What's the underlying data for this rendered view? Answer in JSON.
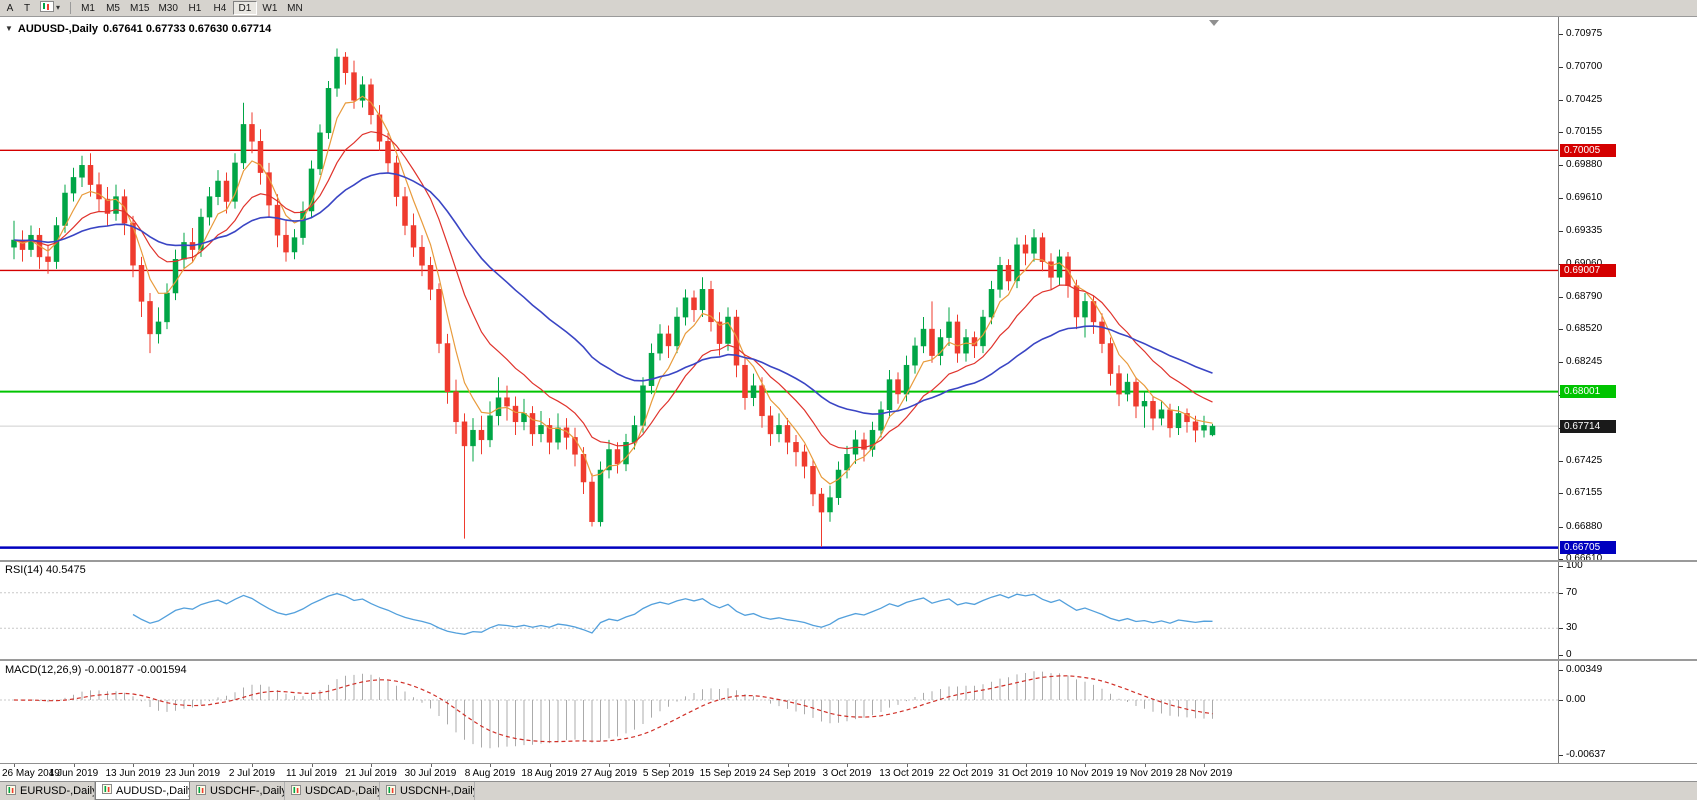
{
  "toolbar": {
    "left_buttons": [
      "A",
      "T"
    ],
    "timeframes": [
      "M1",
      "M5",
      "M15",
      "M30",
      "H1",
      "H4",
      "D1",
      "W1",
      "MN"
    ],
    "active_timeframe": "D1"
  },
  "icons": {
    "collapse": "▼",
    "dropdown": "▾"
  },
  "chart": {
    "title": "AUDUSD-,Daily",
    "ohlc_label": "0.67641 0.67733 0.67630 0.67714"
  },
  "chart_data": {
    "type": "candlestick",
    "symbol": "AUDUSD",
    "timeframe": "Daily",
    "current": {
      "open": 0.67641,
      "high": 0.67733,
      "low": 0.6763,
      "close": 0.67714
    },
    "bull_color": "#00a546",
    "bear_color": "#ef3b2e",
    "price_range": {
      "top": 0.71055,
      "bottom": 0.6661
    },
    "y_ticks": [
      "0.70975",
      "0.70700",
      "0.70425",
      "0.70155",
      "0.69880",
      "0.69610",
      "0.69335",
      "0.69060",
      "0.68790",
      "0.68520",
      "0.68245",
      "0.67975",
      "0.67700",
      "0.67425",
      "0.67155",
      "0.66880",
      "0.66610"
    ],
    "x_labels": [
      "26 May 2019",
      "4 Jun 2019",
      "13 Jun 2019",
      "23 Jun 2019",
      "2 Jul 2019",
      "11 Jul 2019",
      "21 Jul 2019",
      "30 Jul 2019",
      "8 Aug 2019",
      "18 Aug 2019",
      "27 Aug 2019",
      "5 Sep 2019",
      "15 Sep 2019",
      "24 Sep 2019",
      "3 Oct 2019",
      "13 Oct 2019",
      "22 Oct 2019",
      "31 Oct 2019",
      "10 Nov 2019",
      "19 Nov 2019",
      "28 Nov 2019"
    ],
    "x_label_interval": 7,
    "levels": [
      {
        "price": 0.70005,
        "label": "0.70005",
        "color": "#d40000",
        "width": 1.4,
        "type": "resistance"
      },
      {
        "price": 0.69007,
        "label": "0.69007",
        "color": "#d40000",
        "width": 1.4,
        "type": "resistance"
      },
      {
        "price": 0.68001,
        "label": "0.68001",
        "color": "#00c400",
        "width": 2,
        "type": "support"
      },
      {
        "price": 0.66705,
        "label": "0.66705",
        "color": "#0000bf",
        "width": 2.5,
        "type": "support"
      }
    ],
    "current_price": {
      "value": 0.67714,
      "label": "0.67714",
      "badge_color": "#1a1a1a",
      "line_color": "#cfcfcf"
    },
    "moving_averages": [
      {
        "period": 5,
        "method": "ema",
        "color": "#e89b3c"
      },
      {
        "period": 13,
        "method": "ema",
        "color": "#e0332c"
      },
      {
        "period": 34,
        "method": "ema",
        "color": "#3a45c4"
      }
    ],
    "indicators": [
      {
        "name": "RSI",
        "label": "RSI(14) 40.5475",
        "period": 14,
        "value": 40.5475,
        "levels": [
          70,
          30
        ],
        "y_ticks": [
          100,
          70,
          30,
          0
        ],
        "range": [
          0,
          100
        ],
        "color": "#53a0dc"
      },
      {
        "name": "MACD",
        "label": "MACD(12,26,9) -0.001877 -0.001594",
        "fast": 12,
        "slow": 26,
        "signal_period": 9,
        "values": [
          -0.001877,
          -0.001594
        ],
        "y_ticks": [
          "0.00349",
          "0.00",
          "-0.00637"
        ],
        "y_tick_values": [
          0.00349,
          0,
          -0.00637
        ],
        "range": [
          -0.00637,
          0.00349
        ],
        "histogram_color": "#ababab",
        "signal_color": "#d03028"
      }
    ],
    "candles": [
      [
        0.692,
        0.6942,
        0.691,
        0.6926
      ],
      [
        0.6926,
        0.6934,
        0.6908,
        0.6918
      ],
      [
        0.6918,
        0.6938,
        0.6912,
        0.693
      ],
      [
        0.693,
        0.6936,
        0.6902,
        0.6912
      ],
      [
        0.6912,
        0.6922,
        0.6898,
        0.6908
      ],
      [
        0.6908,
        0.6945,
        0.6902,
        0.6938
      ],
      [
        0.6938,
        0.6972,
        0.6932,
        0.6965
      ],
      [
        0.6965,
        0.6986,
        0.6958,
        0.6978
      ],
      [
        0.6978,
        0.6996,
        0.697,
        0.6988
      ],
      [
        0.6988,
        0.6998,
        0.6962,
        0.6972
      ],
      [
        0.6972,
        0.6982,
        0.695,
        0.696
      ],
      [
        0.696,
        0.697,
        0.6938,
        0.6948
      ],
      [
        0.6948,
        0.6972,
        0.6942,
        0.6962
      ],
      [
        0.6962,
        0.6968,
        0.693,
        0.694
      ],
      [
        0.694,
        0.6946,
        0.6895,
        0.6905
      ],
      [
        0.6905,
        0.6912,
        0.6862,
        0.6875
      ],
      [
        0.6875,
        0.6882,
        0.6832,
        0.6848
      ],
      [
        0.6848,
        0.687,
        0.684,
        0.6858
      ],
      [
        0.6858,
        0.689,
        0.6852,
        0.6882
      ],
      [
        0.6882,
        0.6918,
        0.6876,
        0.691
      ],
      [
        0.691,
        0.6932,
        0.6902,
        0.6924
      ],
      [
        0.6924,
        0.6936,
        0.6908,
        0.6918
      ],
      [
        0.6918,
        0.6952,
        0.6912,
        0.6945
      ],
      [
        0.6945,
        0.697,
        0.6938,
        0.6962
      ],
      [
        0.6962,
        0.6984,
        0.6955,
        0.6975
      ],
      [
        0.6975,
        0.6982,
        0.6948,
        0.6958
      ],
      [
        0.6958,
        0.6998,
        0.6952,
        0.699
      ],
      [
        0.699,
        0.704,
        0.6985,
        0.7022
      ],
      [
        0.7022,
        0.7032,
        0.6998,
        0.7008
      ],
      [
        0.7008,
        0.7018,
        0.6972,
        0.6982
      ],
      [
        0.6982,
        0.699,
        0.6945,
        0.6955
      ],
      [
        0.6955,
        0.6964,
        0.692,
        0.693
      ],
      [
        0.693,
        0.6942,
        0.6908,
        0.6916
      ],
      [
        0.6916,
        0.6935,
        0.691,
        0.6928
      ],
      [
        0.6928,
        0.6958,
        0.6922,
        0.695
      ],
      [
        0.695,
        0.6992,
        0.6944,
        0.6985
      ],
      [
        0.6985,
        0.7022,
        0.698,
        0.7015
      ],
      [
        0.7015,
        0.7058,
        0.701,
        0.7052
      ],
      [
        0.7052,
        0.7085,
        0.7045,
        0.7078
      ],
      [
        0.7078,
        0.7082,
        0.7055,
        0.7065
      ],
      [
        0.7065,
        0.7075,
        0.7035,
        0.7042
      ],
      [
        0.7042,
        0.7062,
        0.7036,
        0.7055
      ],
      [
        0.7055,
        0.706,
        0.7022,
        0.703
      ],
      [
        0.703,
        0.7038,
        0.7,
        0.7008
      ],
      [
        0.7008,
        0.7015,
        0.6982,
        0.699
      ],
      [
        0.699,
        0.6996,
        0.6954,
        0.6962
      ],
      [
        0.6962,
        0.697,
        0.693,
        0.6938
      ],
      [
        0.6938,
        0.6948,
        0.6912,
        0.692
      ],
      [
        0.692,
        0.693,
        0.6896,
        0.6905
      ],
      [
        0.6905,
        0.6912,
        0.6876,
        0.6885
      ],
      [
        0.6885,
        0.689,
        0.6832,
        0.684
      ],
      [
        0.684,
        0.6848,
        0.679,
        0.68
      ],
      [
        0.68,
        0.681,
        0.6765,
        0.6775
      ],
      [
        0.6775,
        0.6782,
        0.6678,
        0.6755
      ],
      [
        0.6755,
        0.6778,
        0.6742,
        0.6768
      ],
      [
        0.6768,
        0.678,
        0.6748,
        0.676
      ],
      [
        0.676,
        0.6792,
        0.6754,
        0.678
      ],
      [
        0.678,
        0.6812,
        0.6772,
        0.6795
      ],
      [
        0.6795,
        0.6805,
        0.6776,
        0.6788
      ],
      [
        0.6788,
        0.6796,
        0.6764,
        0.6775
      ],
      [
        0.6775,
        0.6794,
        0.6768,
        0.6782
      ],
      [
        0.6782,
        0.6788,
        0.6755,
        0.6765
      ],
      [
        0.6765,
        0.6784,
        0.6758,
        0.6772
      ],
      [
        0.6772,
        0.6778,
        0.6748,
        0.6758
      ],
      [
        0.6758,
        0.6782,
        0.6752,
        0.677
      ],
      [
        0.677,
        0.6778,
        0.6752,
        0.6762
      ],
      [
        0.6762,
        0.677,
        0.6738,
        0.6748
      ],
      [
        0.6748,
        0.6754,
        0.6715,
        0.6725
      ],
      [
        0.6725,
        0.6732,
        0.6688,
        0.6692
      ],
      [
        0.6692,
        0.6742,
        0.6688,
        0.6735
      ],
      [
        0.6735,
        0.676,
        0.6728,
        0.6752
      ],
      [
        0.6752,
        0.6758,
        0.6732,
        0.674
      ],
      [
        0.674,
        0.6765,
        0.6734,
        0.6758
      ],
      [
        0.6758,
        0.678,
        0.6752,
        0.6772
      ],
      [
        0.6772,
        0.6812,
        0.6766,
        0.6805
      ],
      [
        0.6805,
        0.684,
        0.6798,
        0.6832
      ],
      [
        0.6832,
        0.6856,
        0.6826,
        0.6848
      ],
      [
        0.6848,
        0.6855,
        0.6828,
        0.6838
      ],
      [
        0.6838,
        0.687,
        0.6832,
        0.6862
      ],
      [
        0.6862,
        0.6885,
        0.6855,
        0.6878
      ],
      [
        0.6878,
        0.6884,
        0.6858,
        0.6868
      ],
      [
        0.6868,
        0.6895,
        0.6862,
        0.6885
      ],
      [
        0.6885,
        0.6892,
        0.685,
        0.6858
      ],
      [
        0.6858,
        0.6866,
        0.683,
        0.684
      ],
      [
        0.684,
        0.687,
        0.6834,
        0.6862
      ],
      [
        0.6862,
        0.6868,
        0.6812,
        0.6822
      ],
      [
        0.6822,
        0.683,
        0.6785,
        0.6795
      ],
      [
        0.6795,
        0.6815,
        0.6788,
        0.6805
      ],
      [
        0.6805,
        0.6812,
        0.677,
        0.678
      ],
      [
        0.678,
        0.6788,
        0.6755,
        0.6765
      ],
      [
        0.6765,
        0.6782,
        0.6758,
        0.6772
      ],
      [
        0.6772,
        0.6778,
        0.6748,
        0.6758
      ],
      [
        0.6758,
        0.6764,
        0.6738,
        0.675
      ],
      [
        0.675,
        0.6756,
        0.6728,
        0.6738
      ],
      [
        0.6738,
        0.6744,
        0.6705,
        0.6715
      ],
      [
        0.6715,
        0.672,
        0.6671,
        0.67
      ],
      [
        0.67,
        0.6722,
        0.6692,
        0.6712
      ],
      [
        0.6712,
        0.6742,
        0.6706,
        0.6735
      ],
      [
        0.6735,
        0.6755,
        0.6728,
        0.6748
      ],
      [
        0.6748,
        0.6768,
        0.674,
        0.676
      ],
      [
        0.676,
        0.6766,
        0.6742,
        0.6752
      ],
      [
        0.6752,
        0.6775,
        0.6746,
        0.6768
      ],
      [
        0.6768,
        0.6792,
        0.6762,
        0.6785
      ],
      [
        0.6785,
        0.6818,
        0.6778,
        0.681
      ],
      [
        0.681,
        0.6816,
        0.679,
        0.6798
      ],
      [
        0.6798,
        0.683,
        0.6792,
        0.6822
      ],
      [
        0.6822,
        0.6845,
        0.6815,
        0.6838
      ],
      [
        0.6838,
        0.6862,
        0.6832,
        0.6852
      ],
      [
        0.6852,
        0.6875,
        0.6824,
        0.683
      ],
      [
        0.683,
        0.6852,
        0.6822,
        0.6845
      ],
      [
        0.6845,
        0.687,
        0.6838,
        0.6858
      ],
      [
        0.6858,
        0.6864,
        0.6824,
        0.6832
      ],
      [
        0.6832,
        0.6852,
        0.6825,
        0.6845
      ],
      [
        0.6845,
        0.685,
        0.6828,
        0.6838
      ],
      [
        0.6838,
        0.6868,
        0.6832,
        0.6862
      ],
      [
        0.6862,
        0.6892,
        0.6856,
        0.6885
      ],
      [
        0.6885,
        0.6912,
        0.6878,
        0.6905
      ],
      [
        0.6905,
        0.691,
        0.6884,
        0.6892
      ],
      [
        0.6892,
        0.6928,
        0.6886,
        0.6922
      ],
      [
        0.6922,
        0.693,
        0.6905,
        0.6915
      ],
      [
        0.6915,
        0.6935,
        0.6908,
        0.6928
      ],
      [
        0.6928,
        0.6932,
        0.69,
        0.6908
      ],
      [
        0.6908,
        0.6915,
        0.6885,
        0.6895
      ],
      [
        0.6895,
        0.6918,
        0.6888,
        0.6912
      ],
      [
        0.6912,
        0.6916,
        0.6878,
        0.6888
      ],
      [
        0.6888,
        0.6893,
        0.6852,
        0.6862
      ],
      [
        0.6862,
        0.6882,
        0.6845,
        0.6875
      ],
      [
        0.6875,
        0.688,
        0.6848,
        0.6858
      ],
      [
        0.6858,
        0.6865,
        0.6832,
        0.684
      ],
      [
        0.684,
        0.6845,
        0.6805,
        0.6815
      ],
      [
        0.6815,
        0.6822,
        0.6788,
        0.6798
      ],
      [
        0.6798,
        0.6815,
        0.6792,
        0.6808
      ],
      [
        0.6808,
        0.6812,
        0.6778,
        0.6788
      ],
      [
        0.6788,
        0.68,
        0.677,
        0.6792
      ],
      [
        0.6792,
        0.6796,
        0.6768,
        0.6778
      ],
      [
        0.6778,
        0.6792,
        0.6772,
        0.6785
      ],
      [
        0.6785,
        0.679,
        0.6762,
        0.677
      ],
      [
        0.677,
        0.6788,
        0.6764,
        0.6782
      ],
      [
        0.6782,
        0.6786,
        0.6766,
        0.6775
      ],
      [
        0.6775,
        0.678,
        0.6758,
        0.6768
      ],
      [
        0.6768,
        0.678,
        0.6762,
        0.6772
      ],
      [
        0.67641,
        0.67733,
        0.6763,
        0.67714
      ]
    ]
  },
  "tabs": [
    {
      "label": "EURUSD-,Daily",
      "active": false
    },
    {
      "label": "AUDUSD-,Daily",
      "active": true
    },
    {
      "label": "USDCHF-,Daily",
      "active": false
    },
    {
      "label": "USDCAD-,Daily",
      "active": false
    },
    {
      "label": "USDCNH-,Daily",
      "active": false
    }
  ]
}
